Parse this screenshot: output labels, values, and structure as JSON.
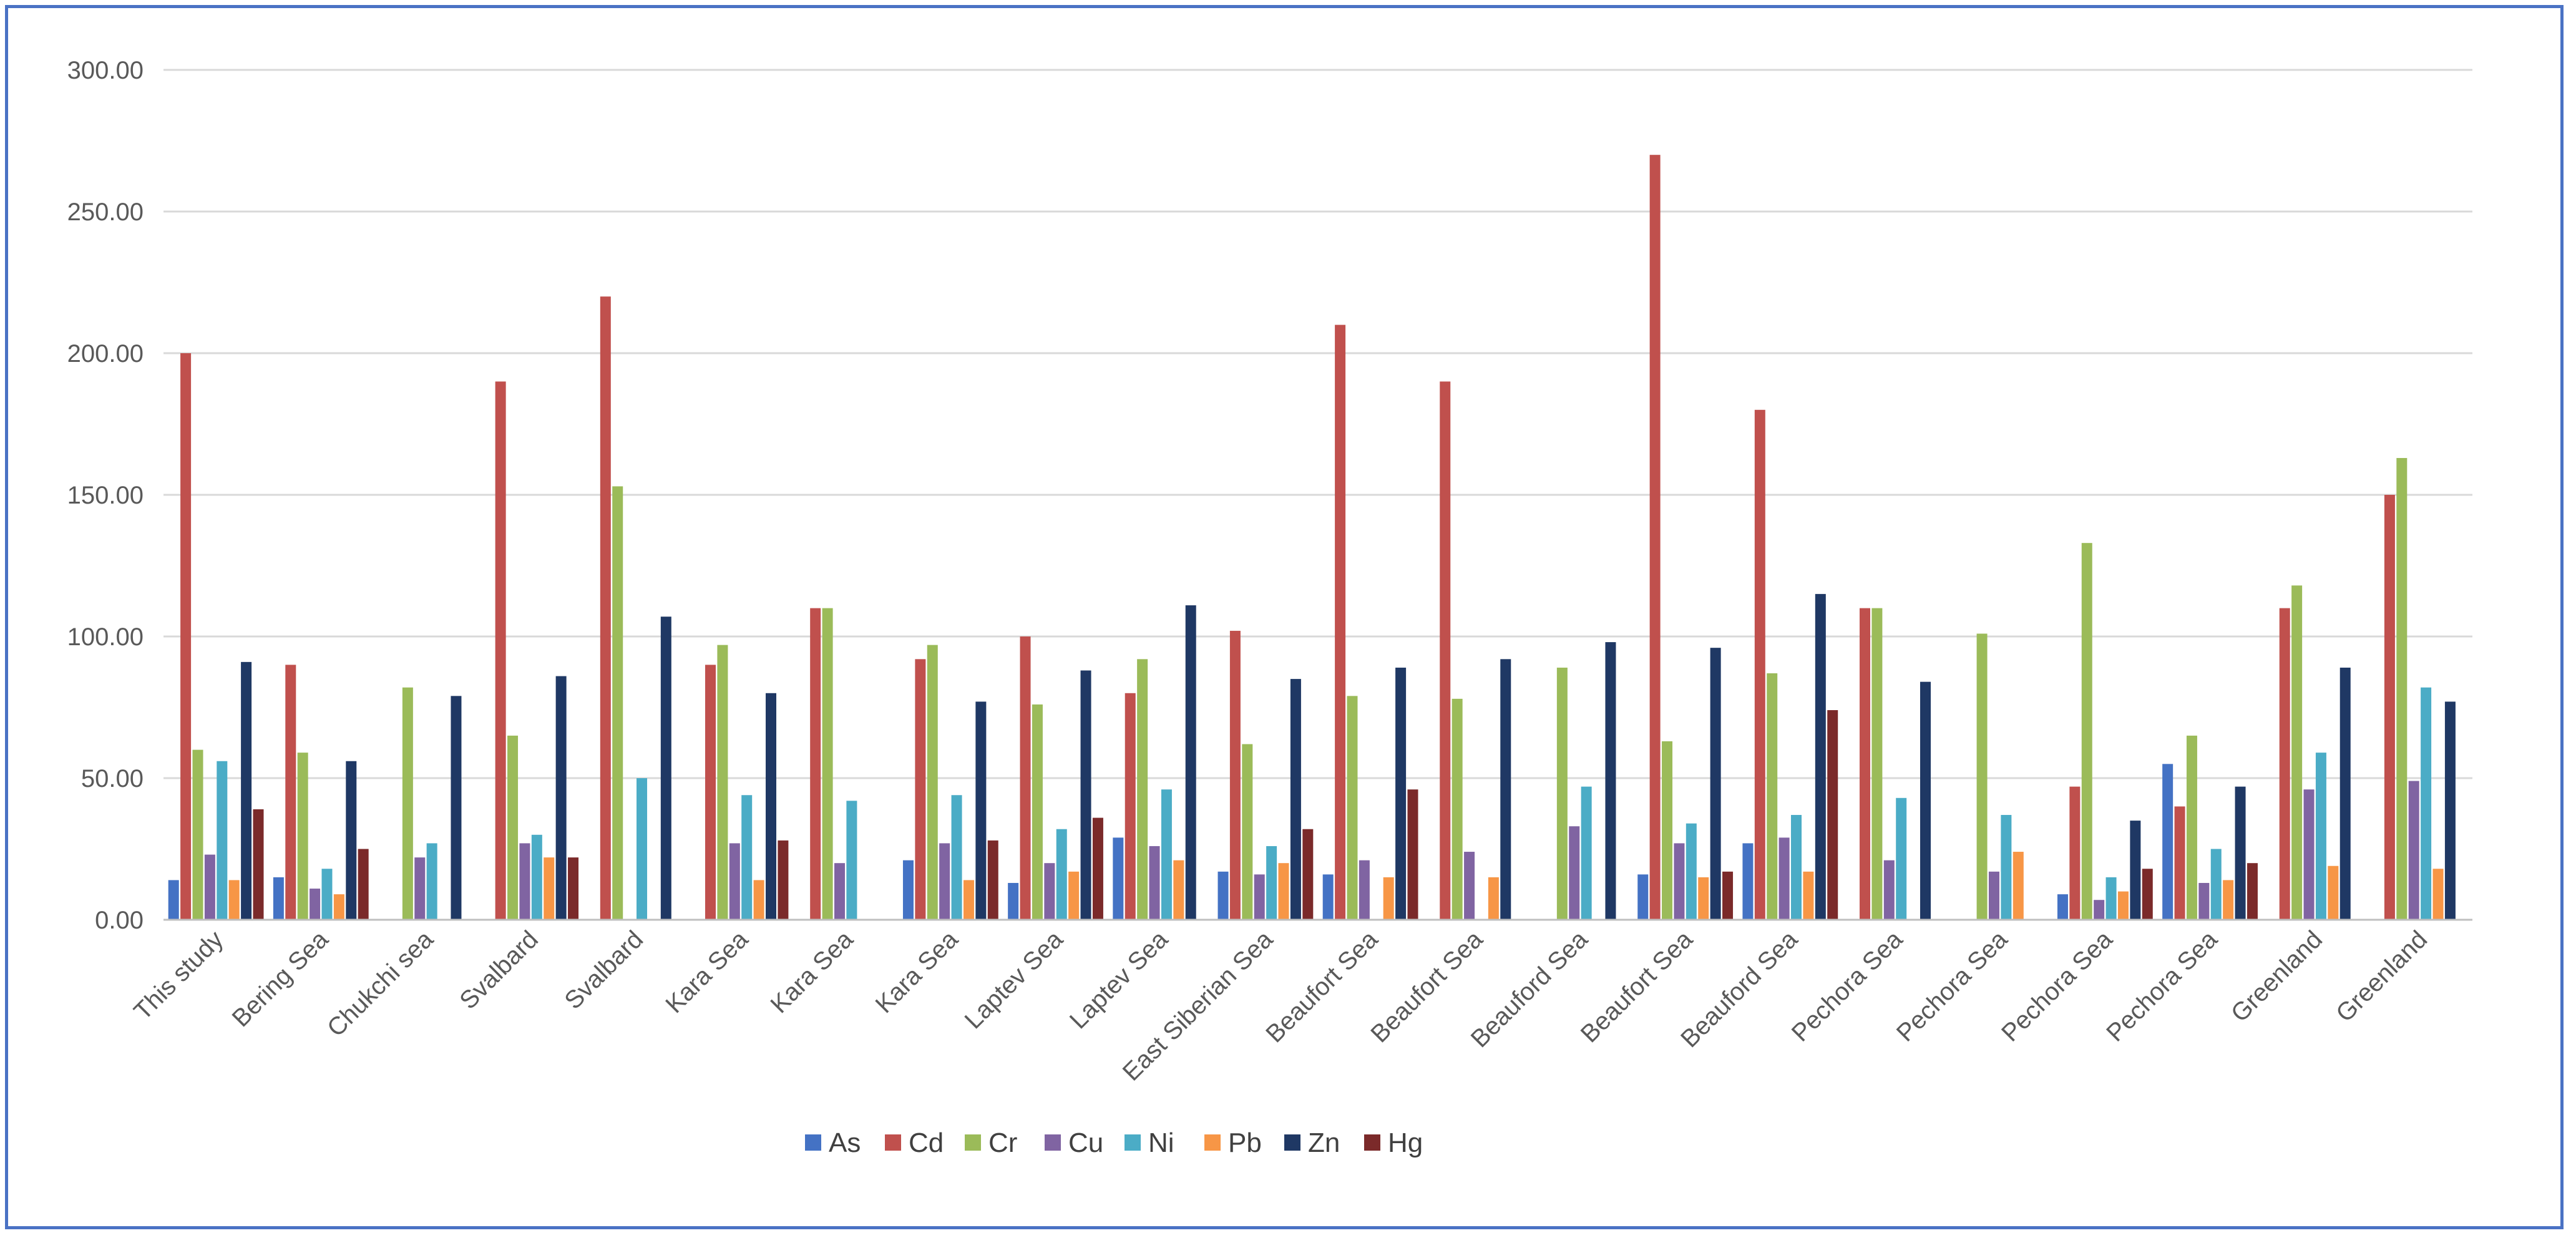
{
  "chart_data": {
    "type": "bar",
    "title": "",
    "xlabel": "",
    "ylabel": "",
    "ylim": [
      0,
      300
    ],
    "yticks": [
      "0.00",
      "50.00",
      "100.00",
      "150.00",
      "200.00",
      "250.00",
      "300.00"
    ],
    "grid": true,
    "legend_position": "bottom",
    "categories": [
      "This study",
      "Bering Sea",
      "Chukchi sea",
      "Svalbard",
      "Svalbard",
      "Kara Sea",
      "Kara Sea",
      "Kara Sea",
      "Laptev Sea",
      "Laptev Sea",
      "East Siberian Sea",
      "Beaufort Sea",
      "Beaufort Sea",
      "Beauford Sea",
      "Beaufort Sea",
      "Beauford Sea",
      "Pechora Sea",
      "Pechora Sea",
      "Pechora Sea",
      "Pechora Sea",
      "Greenland",
      "Greenland"
    ],
    "series": [
      {
        "name": "As",
        "color": "#4472c4",
        "values": [
          14,
          15,
          null,
          null,
          null,
          null,
          null,
          21,
          13,
          29,
          17,
          16,
          null,
          null,
          16,
          27,
          null,
          null,
          9,
          55,
          null,
          null
        ]
      },
      {
        "name": "Cd",
        "color": "#c0504d",
        "values": [
          200,
          90,
          null,
          190,
          220,
          90,
          110,
          92,
          100,
          80,
          102,
          210,
          190,
          null,
          270,
          180,
          110,
          null,
          47,
          40,
          110,
          150
        ]
      },
      {
        "name": "Cr",
        "color": "#9bbb59",
        "values": [
          60,
          59,
          82,
          65,
          153,
          97,
          110,
          97,
          76,
          92,
          62,
          79,
          78,
          89,
          63,
          87,
          110,
          101,
          133,
          65,
          118,
          163
        ]
      },
      {
        "name": "Cu",
        "color": "#8064a2",
        "values": [
          23,
          11,
          22,
          27,
          null,
          27,
          20,
          27,
          20,
          26,
          16,
          21,
          24,
          33,
          27,
          29,
          21,
          17,
          7,
          13,
          46,
          49
        ]
      },
      {
        "name": "Ni",
        "color": "#4bacc6",
        "values": [
          56,
          18,
          27,
          30,
          50,
          44,
          42,
          44,
          32,
          46,
          26,
          null,
          null,
          47,
          34,
          37,
          43,
          37,
          15,
          25,
          59,
          82
        ]
      },
      {
        "name": "Pb",
        "color": "#f79646",
        "values": [
          14,
          9,
          null,
          22,
          null,
          14,
          null,
          14,
          17,
          21,
          20,
          15,
          15,
          null,
          15,
          17,
          null,
          24,
          10,
          14,
          19,
          18
        ]
      },
      {
        "name": "Zn",
        "color": "#1f3864",
        "values": [
          91,
          56,
          79,
          86,
          107,
          80,
          null,
          77,
          88,
          111,
          85,
          89,
          92,
          98,
          96,
          115,
          84,
          null,
          35,
          47,
          89,
          77
        ]
      },
      {
        "name": "Hg",
        "color": "#7b2a2a",
        "values": [
          39,
          25,
          null,
          22,
          null,
          28,
          null,
          28,
          36,
          null,
          32,
          46,
          null,
          null,
          17,
          74,
          null,
          null,
          18,
          20,
          null,
          null
        ]
      }
    ]
  }
}
